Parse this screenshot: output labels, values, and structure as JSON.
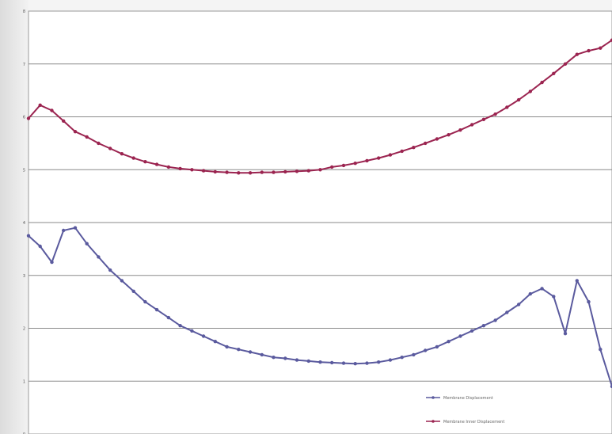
{
  "chart_data": {
    "type": "line",
    "title": "",
    "xlabel": "",
    "ylabel": "",
    "grid": true,
    "legend_position": "bottom-right",
    "ylim": [
      0,
      8
    ],
    "yticks": [
      0,
      1,
      2,
      3,
      4,
      5,
      6,
      7,
      8
    ],
    "x_range": [
      0,
      100
    ],
    "colors": {
      "purple": "#5a5a9e",
      "crimson": "#9b2450",
      "grid": "#8a8a8a",
      "plot_bg": "#ffffff"
    },
    "series": [
      {
        "name": "Membrane Displacement",
        "color": "#5a5a9e",
        "x": [
          0,
          2,
          4,
          6,
          8,
          10,
          12,
          14,
          16,
          18,
          20,
          22,
          24,
          26,
          28,
          30,
          32,
          34,
          36,
          38,
          40,
          42,
          44,
          46,
          48,
          50,
          52,
          54,
          56,
          58,
          60,
          62,
          64,
          66,
          68,
          70,
          72,
          74,
          76,
          78,
          80,
          82,
          84,
          86,
          88,
          90,
          92,
          94,
          96,
          98,
          100
        ],
        "y": [
          3.75,
          3.55,
          3.25,
          3.85,
          3.9,
          3.6,
          3.35,
          3.1,
          2.9,
          2.7,
          2.5,
          2.35,
          2.2,
          2.05,
          1.95,
          1.85,
          1.75,
          1.65,
          1.6,
          1.55,
          1.5,
          1.45,
          1.43,
          1.4,
          1.38,
          1.36,
          1.35,
          1.34,
          1.33,
          1.34,
          1.36,
          1.4,
          1.45,
          1.5,
          1.58,
          1.65,
          1.75,
          1.85,
          1.95,
          2.05,
          2.15,
          2.3,
          2.45,
          2.65,
          2.75,
          2.6,
          1.9,
          2.9,
          2.5,
          1.6,
          0.9
        ]
      },
      {
        "name": "Membrane Inner Displacement",
        "color": "#9b2450",
        "x": [
          0,
          2,
          4,
          6,
          8,
          10,
          12,
          14,
          16,
          18,
          20,
          22,
          24,
          26,
          28,
          30,
          32,
          34,
          36,
          38,
          40,
          42,
          44,
          46,
          48,
          50,
          52,
          54,
          56,
          58,
          60,
          62,
          64,
          66,
          68,
          70,
          72,
          74,
          76,
          78,
          80,
          82,
          84,
          86,
          88,
          90,
          92,
          94,
          96,
          98,
          100
        ],
        "y": [
          5.97,
          6.22,
          6.12,
          5.92,
          5.72,
          5.62,
          5.5,
          5.4,
          5.3,
          5.22,
          5.15,
          5.1,
          5.05,
          5.02,
          5.0,
          4.98,
          4.96,
          4.95,
          4.94,
          4.94,
          4.95,
          4.95,
          4.96,
          4.97,
          4.98,
          5.0,
          5.05,
          5.08,
          5.12,
          5.17,
          5.22,
          5.28,
          5.35,
          5.42,
          5.5,
          5.58,
          5.66,
          5.75,
          5.85,
          5.95,
          6.05,
          6.18,
          6.32,
          6.48,
          6.65,
          6.82,
          7.0,
          7.18,
          7.25,
          7.3,
          7.45
        ]
      }
    ]
  }
}
